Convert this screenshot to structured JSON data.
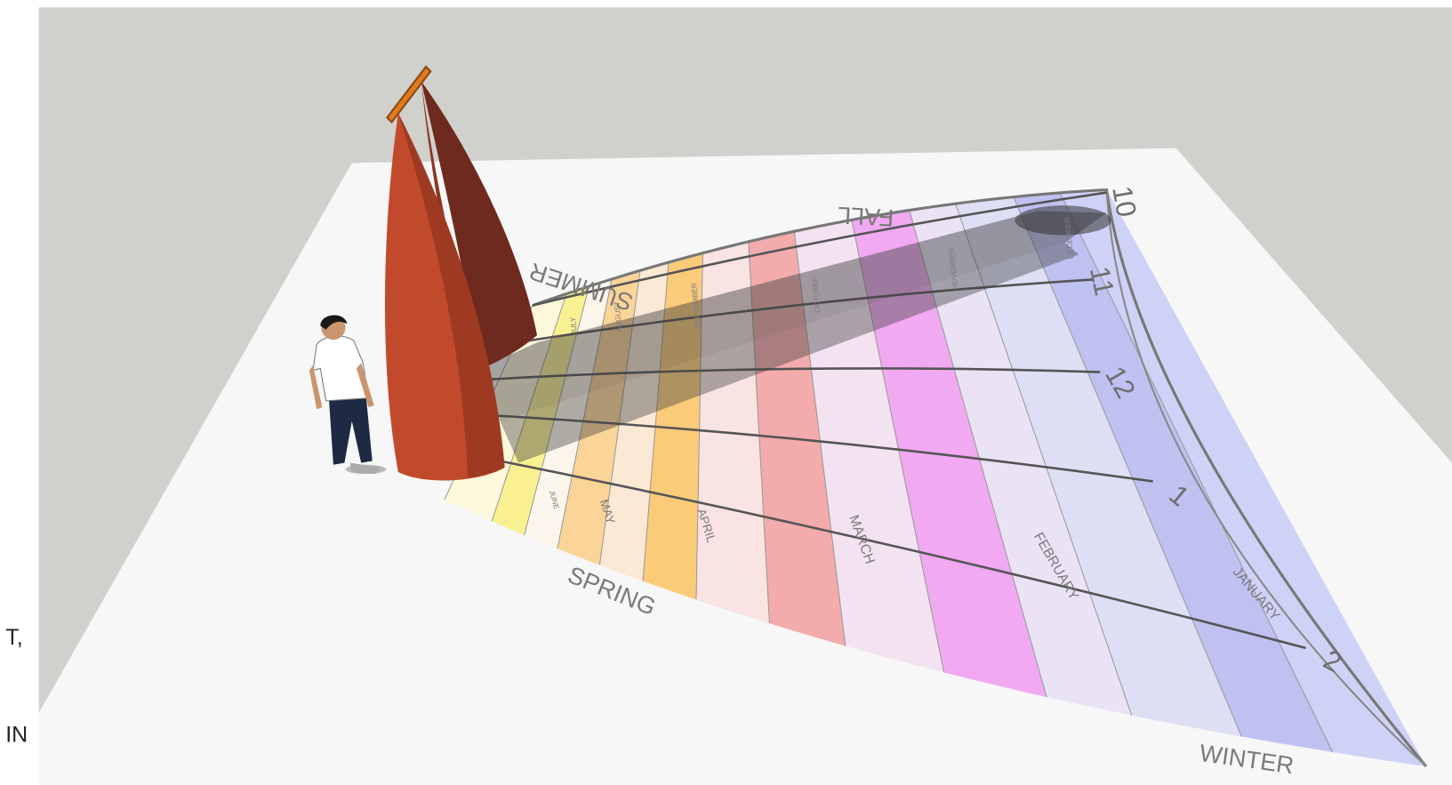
{
  "labels": {
    "seasons": [
      "SPRING",
      "SUMMER",
      "FALL",
      "WINTER"
    ],
    "hours": [
      "10",
      "11",
      "12",
      "1",
      "2"
    ],
    "months_front": [
      "JUNE",
      "MAY",
      "APRIL",
      "MARCH",
      "FEBRUARY",
      "JANUARY"
    ],
    "months_back": [
      "JULY",
      "AUGUST",
      "SEPTEMBER",
      "OCTOBER",
      "NOVEMBER",
      "DECEMBER"
    ]
  },
  "edge_text": [
    "T,",
    "IN"
  ]
}
